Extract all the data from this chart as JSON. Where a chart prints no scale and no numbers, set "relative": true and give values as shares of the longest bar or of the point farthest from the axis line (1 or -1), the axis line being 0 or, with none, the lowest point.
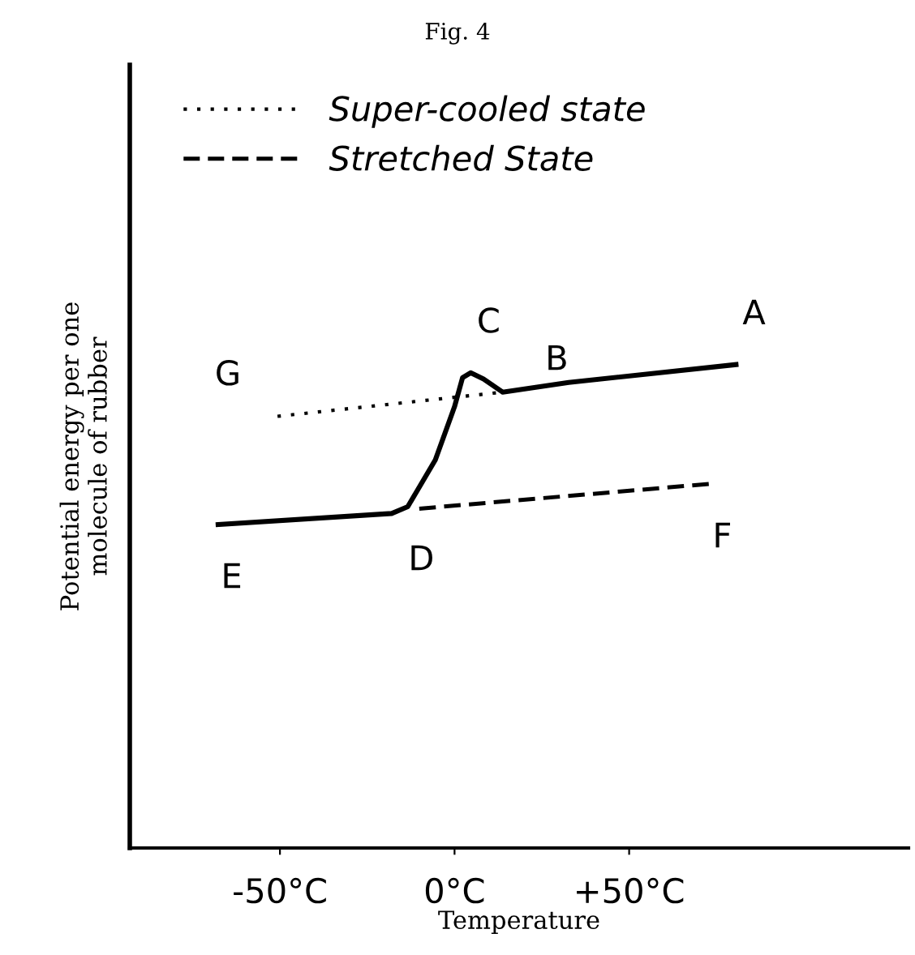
{
  "chart_data": {
    "type": "line",
    "title": "Fig. 4",
    "xlabel": "Temperature",
    "ylabel": "Potential energy per one\nmolecule of rubber",
    "relative": true,
    "xlim": [
      -93,
      130
    ],
    "xticks": [
      {
        "value": -50,
        "label": "-50°C"
      },
      {
        "value": 0,
        "label": "0°C"
      },
      {
        "value": 50,
        "label": "+50°C"
      }
    ],
    "series": [
      {
        "color": "#000000",
        "line_style": "solid",
        "x": [
          -67.7,
          -18,
          -13.4,
          -5.5,
          0,
          2.3,
          4.6,
          8.3,
          13.8,
          32.7,
          80.6
        ],
        "values": [
          0.669,
          0.692,
          0.706,
          0.803,
          0.913,
          0.973,
          0.983,
          0.97,
          0.943,
          0.963,
          1.0
        ]
      },
      {
        "name": "Super-cooled state",
        "color": "#000000",
        "line_style": "dotted",
        "x": [
          -50.7,
          13.8
        ],
        "values": [
          0.893,
          0.943
        ]
      },
      {
        "name": "Stretched State",
        "color": "#000000",
        "line_style": "dashed",
        "x": [
          -10.1,
          72.8
        ],
        "values": [
          0.702,
          0.753
        ]
      }
    ],
    "annotations": [
      {
        "text": "A",
        "x": 80.6,
        "y": 1.0
      },
      {
        "text": "C",
        "x": 4.6,
        "y": 0.983
      },
      {
        "text": "B",
        "x": 13.8,
        "y": 0.943
      },
      {
        "text": "G",
        "x": -50.7,
        "y": 0.893
      },
      {
        "text": "E",
        "x": -67.7,
        "y": 0.669
      },
      {
        "text": "D",
        "x": -13.4,
        "y": 0.706
      },
      {
        "text": "F",
        "x": 72.8,
        "y": 0.753
      }
    ],
    "legend": "top left",
    "grid": false
  }
}
